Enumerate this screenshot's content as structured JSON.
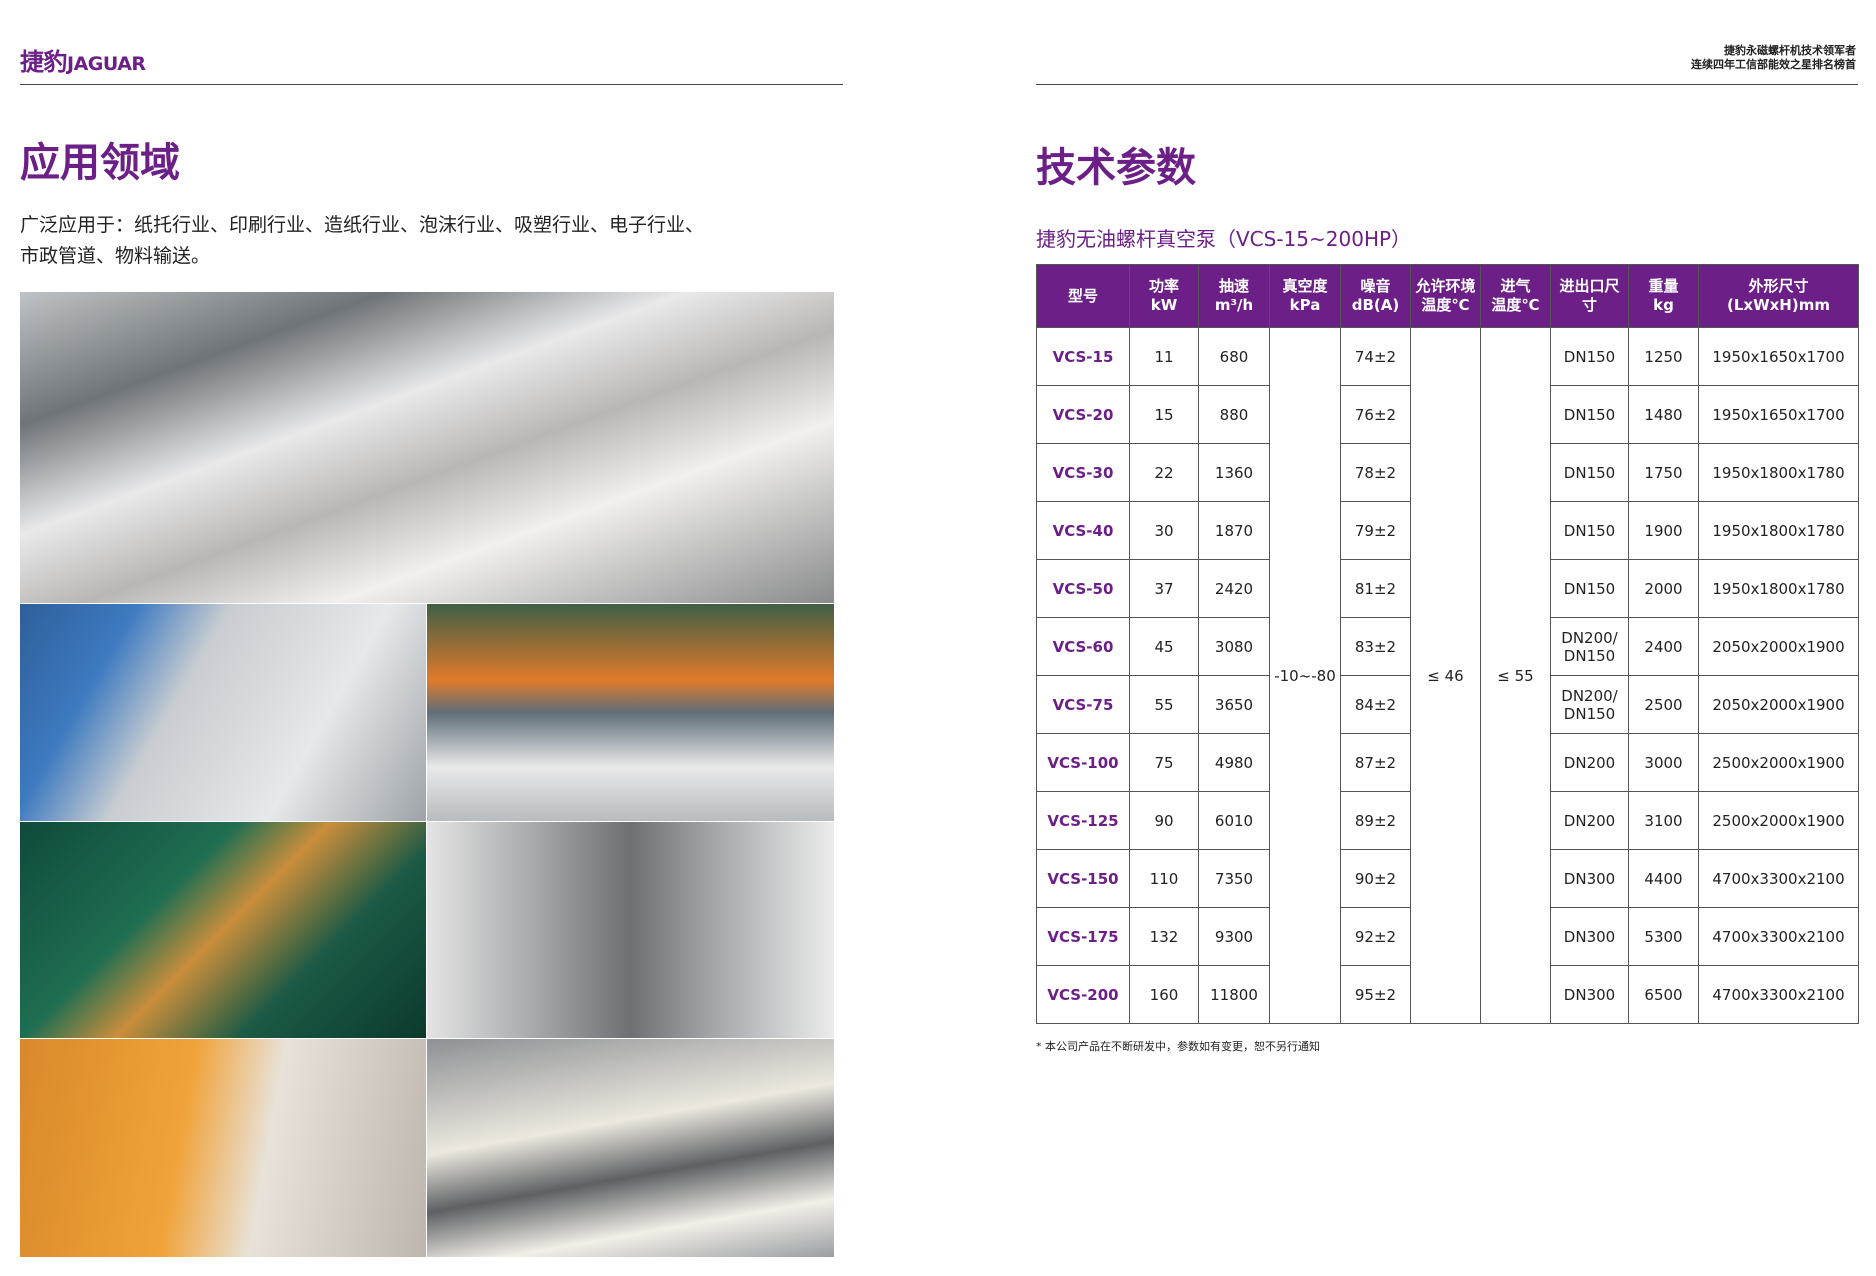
{
  "header": {
    "logo": "捷豹",
    "logo_en": "JAGUAR",
    "tagline": [
      "捷豹永磁螺杆机技术领军者",
      "连续四年工信部能效之星排名榜首"
    ]
  },
  "left": {
    "title": "应用领域",
    "description": [
      "广泛应用于：纸托行业、印刷行业、造纸行业、泡沫行业、吸塑行业、电子行业、",
      "市政管道、物料输送。"
    ]
  },
  "right": {
    "title": "技术参数",
    "subtitle": "捷豹无油螺杆真空泵（VCS-15~200HP）",
    "table": {
      "headers": [
        [
          "型号"
        ],
        [
          "功率",
          "kW"
        ],
        [
          "抽速",
          "m³/h"
        ],
        [
          "真空度",
          "kPa"
        ],
        [
          "噪音",
          "dB(A)"
        ],
        [
          "允许环境",
          "温度℃"
        ],
        [
          "进气",
          "温度℃"
        ],
        [
          "进出口尺",
          "寸"
        ],
        [
          "重量",
          "kg"
        ],
        [
          "外形尺寸",
          "(LxWxH)mm"
        ]
      ],
      "vacuum": "-10~-80",
      "ambient_temp": "≤ 46",
      "intake_temp": "≤ 55",
      "rows": [
        {
          "model": "VCS-15",
          "power": "11",
          "speed": "680",
          "noise": "74±2",
          "port": [
            "DN150"
          ],
          "weight": "1250",
          "size": "1950x1650x1700"
        },
        {
          "model": "VCS-20",
          "power": "15",
          "speed": "880",
          "noise": "76±2",
          "port": [
            "DN150"
          ],
          "weight": "1480",
          "size": "1950x1650x1700"
        },
        {
          "model": "VCS-30",
          "power": "22",
          "speed": "1360",
          "noise": "78±2",
          "port": [
            "DN150"
          ],
          "weight": "1750",
          "size": "1950x1800x1780"
        },
        {
          "model": "VCS-40",
          "power": "30",
          "speed": "1870",
          "noise": "79±2",
          "port": [
            "DN150"
          ],
          "weight": "1900",
          "size": "1950x1800x1780"
        },
        {
          "model": "VCS-50",
          "power": "37",
          "speed": "2420",
          "noise": "81±2",
          "port": [
            "DN150"
          ],
          "weight": "2000",
          "size": "1950x1800x1780"
        },
        {
          "model": "VCS-60",
          "power": "45",
          "speed": "3080",
          "noise": "83±2",
          "port": [
            "DN200/",
            "DN150"
          ],
          "weight": "2400",
          "size": "2050x2000x1900"
        },
        {
          "model": "VCS-75",
          "power": "55",
          "speed": "3650",
          "noise": "84±2",
          "port": [
            "DN200/",
            "DN150"
          ],
          "weight": "2500",
          "size": "2050x2000x1900"
        },
        {
          "model": "VCS-100",
          "power": "75",
          "speed": "4980",
          "noise": "87±2",
          "port": [
            "DN200"
          ],
          "weight": "3000",
          "size": "2500x2000x1900"
        },
        {
          "model": "VCS-125",
          "power": "90",
          "speed": "6010",
          "noise": "89±2",
          "port": [
            "DN200"
          ],
          "weight": "3100",
          "size": "2500x2000x1900"
        },
        {
          "model": "VCS-150",
          "power": "110",
          "speed": "7350",
          "noise": "90±2",
          "port": [
            "DN300"
          ],
          "weight": "4400",
          "size": "4700x3300x2100"
        },
        {
          "model": "VCS-175",
          "power": "132",
          "speed": "9300",
          "noise": "92±2",
          "port": [
            "DN300"
          ],
          "weight": "5300",
          "size": "4700x3300x2100"
        },
        {
          "model": "VCS-200",
          "power": "160",
          "speed": "11800",
          "noise": "95±2",
          "port": [
            "DN300"
          ],
          "weight": "6500",
          "size": "4700x3300x2100"
        }
      ]
    },
    "footnote": "* 本公司产品在不断研发中，参数如有变更，恕不另行通知"
  }
}
